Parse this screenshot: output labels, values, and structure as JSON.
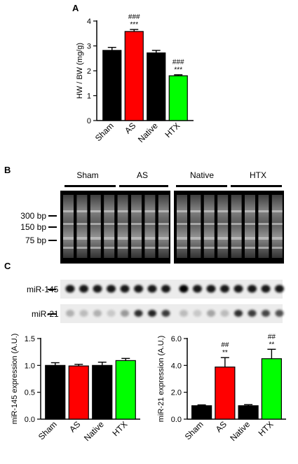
{
  "panels": {
    "a": "A",
    "b": "B",
    "c": "C"
  },
  "panel_b": {
    "groups": [
      "Sham",
      "AS",
      "Native",
      "HTX"
    ],
    "ladder": [
      "300 bp",
      "150 bp",
      "75 bp"
    ],
    "rows": [
      "miR-145",
      "miR-21"
    ],
    "mir145_intensity": [
      0.9,
      0.9,
      0.9,
      0.9,
      0.9,
      0.9,
      0.9,
      0.9,
      1.0,
      0.9,
      0.9,
      0.9,
      0.9,
      0.9,
      0.9,
      0.9
    ],
    "mir21_intensity": [
      0.25,
      0.2,
      0.25,
      0.15,
      0.35,
      0.8,
      0.85,
      0.75,
      0.2,
      0.15,
      0.3,
      0.2,
      0.8,
      0.75,
      0.7,
      0.65
    ]
  },
  "colors": {
    "Sham": "#000000",
    "AS": "#ff0000",
    "Native": "#000000",
    "HTX": "#00ff00"
  },
  "chart_data": [
    {
      "type": "bar",
      "categories": [
        "Sham",
        "AS",
        "Native",
        "HTX"
      ],
      "values": [
        2.82,
        3.58,
        2.72,
        1.8
      ],
      "errors": [
        0.12,
        0.08,
        0.1,
        0.04
      ],
      "annotations": [
        [
          "",
          ""
        ],
        [
          "###",
          "***"
        ],
        [
          "",
          ""
        ],
        [
          "###",
          "***"
        ]
      ],
      "ylabel": "HW / BW (mg/g)",
      "ylim": [
        0,
        4
      ],
      "yticks": [
        "0",
        "1",
        "2",
        "3",
        "4"
      ]
    },
    {
      "type": "bar",
      "categories": [
        "Sham",
        "AS",
        "Native",
        "HTX"
      ],
      "values": [
        1.0,
        0.99,
        1.0,
        1.09
      ],
      "errors": [
        0.05,
        0.03,
        0.06,
        0.04
      ],
      "annotations": [
        [
          "",
          ""
        ],
        [
          "",
          ""
        ],
        [
          "",
          ""
        ],
        [
          "",
          ""
        ]
      ],
      "ylabel": "miR-145 expression (A.U.)",
      "ylim": [
        0,
        1.5
      ],
      "yticks": [
        "0.0",
        "0.5",
        "1.0",
        "1.5"
      ]
    },
    {
      "type": "bar",
      "categories": [
        "Sham",
        "AS",
        "Native",
        "HTX"
      ],
      "values": [
        1.0,
        3.88,
        1.0,
        4.5
      ],
      "errors": [
        0.06,
        0.7,
        0.08,
        0.7
      ],
      "annotations": [
        [
          "",
          ""
        ],
        [
          "##",
          "**"
        ],
        [
          "",
          ""
        ],
        [
          "##",
          "**"
        ]
      ],
      "ylabel": "miR-21 expression (A.U.)",
      "ylim": [
        0,
        6
      ],
      "yticks": [
        "0.0",
        "2.0",
        "4.0",
        "6.0"
      ]
    }
  ]
}
